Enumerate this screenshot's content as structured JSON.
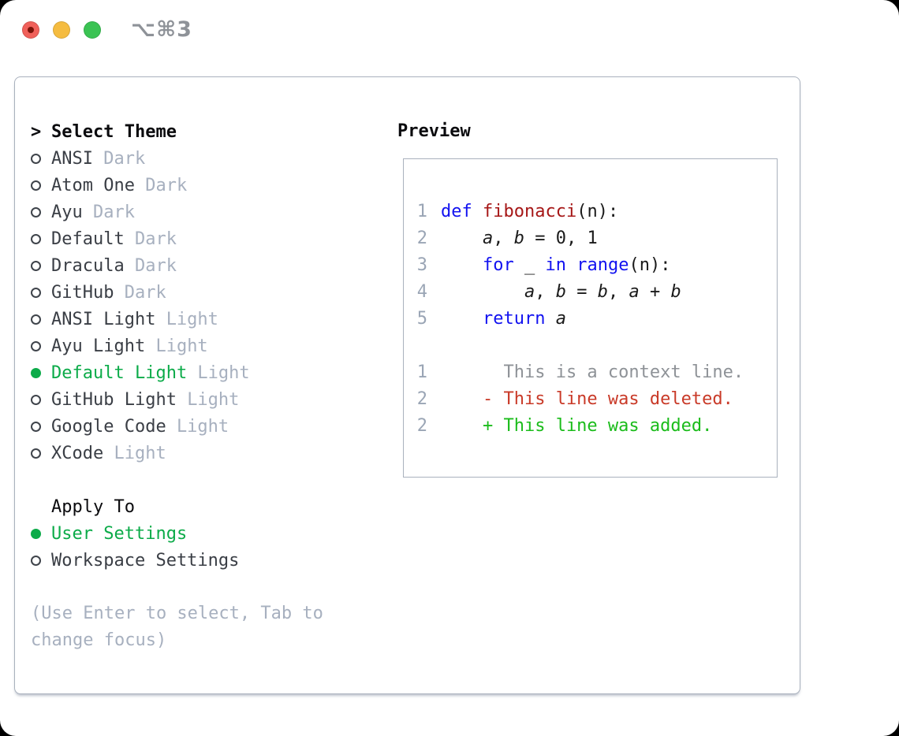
{
  "window": {
    "titlebar": {
      "title": "⌥⌘3"
    }
  },
  "theme_picker": {
    "prompt": ">",
    "header": "Select Theme",
    "items": [
      {
        "name": "ANSI",
        "variant": "Dark",
        "selected": false
      },
      {
        "name": "Atom One",
        "variant": "Dark",
        "selected": false
      },
      {
        "name": "Ayu",
        "variant": "Dark",
        "selected": false
      },
      {
        "name": "Default",
        "variant": "Dark",
        "selected": false
      },
      {
        "name": "Dracula",
        "variant": "Dark",
        "selected": false
      },
      {
        "name": "GitHub",
        "variant": "Dark",
        "selected": false
      },
      {
        "name": "ANSI Light",
        "variant": "Light",
        "selected": false
      },
      {
        "name": "Ayu Light",
        "variant": "Light",
        "selected": false
      },
      {
        "name": "Default Light",
        "variant": "Light",
        "selected": true
      },
      {
        "name": "GitHub Light",
        "variant": "Light",
        "selected": false
      },
      {
        "name": "Google Code",
        "variant": "Light",
        "selected": false
      },
      {
        "name": "XCode",
        "variant": "Light",
        "selected": false
      }
    ]
  },
  "apply_to": {
    "header": "Apply To",
    "options": [
      {
        "label": "User Settings",
        "selected": true
      },
      {
        "label": "Workspace Settings",
        "selected": false
      }
    ]
  },
  "hint": "(Use Enter to select, Tab to change focus)",
  "preview": {
    "header": "Preview",
    "lines": [
      {
        "num": "1",
        "tokens": [
          {
            "text": "def",
            "style": "kw"
          },
          {
            "text": " ",
            "style": "pl"
          },
          {
            "text": "fibonacci",
            "style": "fn"
          },
          {
            "text": "(n):",
            "style": "pl"
          }
        ]
      },
      {
        "num": "2",
        "tokens": [
          {
            "text": "    ",
            "style": "pl"
          },
          {
            "text": "a",
            "style": "var"
          },
          {
            "text": ", ",
            "style": "pl"
          },
          {
            "text": "b",
            "style": "var"
          },
          {
            "text": " = 0, 1",
            "style": "pl"
          }
        ]
      },
      {
        "num": "3",
        "tokens": [
          {
            "text": "    ",
            "style": "pl"
          },
          {
            "text": "for",
            "style": "kw"
          },
          {
            "text": " ",
            "style": "pl"
          },
          {
            "text": "_",
            "style": "var"
          },
          {
            "text": " ",
            "style": "pl"
          },
          {
            "text": "in",
            "style": "kw"
          },
          {
            "text": " ",
            "style": "pl"
          },
          {
            "text": "range",
            "style": "kw"
          },
          {
            "text": "(n):",
            "style": "pl"
          }
        ]
      },
      {
        "num": "4",
        "tokens": [
          {
            "text": "        ",
            "style": "pl"
          },
          {
            "text": "a",
            "style": "var"
          },
          {
            "text": ", ",
            "style": "pl"
          },
          {
            "text": "b",
            "style": "var"
          },
          {
            "text": " = ",
            "style": "pl"
          },
          {
            "text": "b",
            "style": "var"
          },
          {
            "text": ", ",
            "style": "pl"
          },
          {
            "text": "a",
            "style": "var"
          },
          {
            "text": " + ",
            "style": "pl"
          },
          {
            "text": "b",
            "style": "var"
          }
        ]
      },
      {
        "num": "5",
        "tokens": [
          {
            "text": "    ",
            "style": "pl"
          },
          {
            "text": "return",
            "style": "kw"
          },
          {
            "text": " ",
            "style": "pl"
          },
          {
            "text": "a",
            "style": "var"
          }
        ]
      },
      {
        "num": "",
        "tokens": []
      },
      {
        "num": "1",
        "tokens": [
          {
            "text": "      This is a context line.",
            "style": "ctx"
          }
        ]
      },
      {
        "num": "2",
        "tokens": [
          {
            "text": "    - This line was deleted.",
            "style": "del"
          }
        ]
      },
      {
        "num": "2",
        "tokens": [
          {
            "text": "    + This line was added.",
            "style": "add"
          }
        ]
      }
    ]
  },
  "colors": {
    "accent_green": "#0cab49",
    "keyword_blue": "#1212f0",
    "function_red": "#a61717",
    "diff_deleted": "#c93a28",
    "diff_added": "#1bbc1b",
    "muted_gray": "#a7b0bf",
    "panel_border": "#a9b1bd",
    "traffic_red": "#f0605a",
    "traffic_yellow": "#f5bc40",
    "traffic_green": "#3ac353"
  }
}
